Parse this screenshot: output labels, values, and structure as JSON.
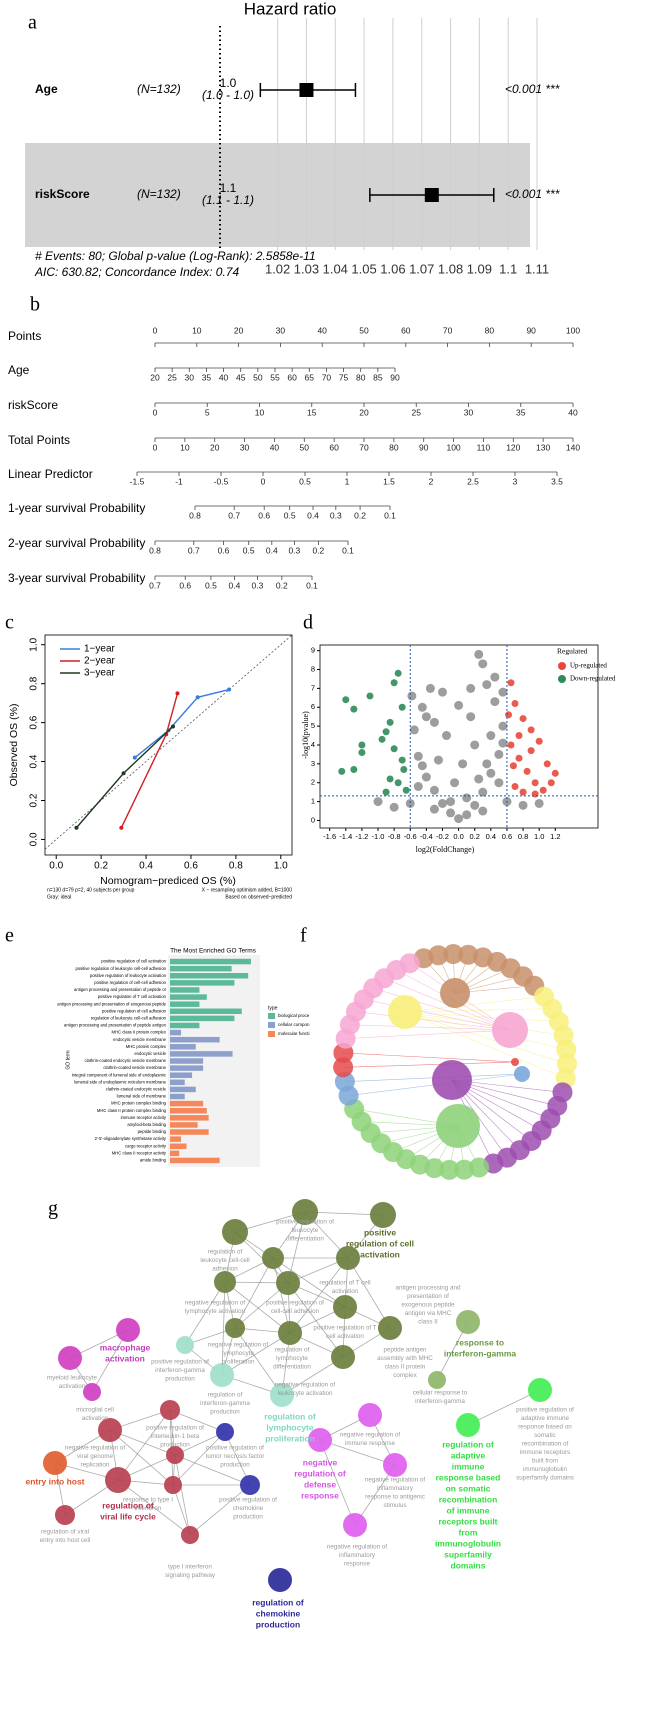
{
  "panel_labels": [
    "a",
    "b",
    "c",
    "d",
    "e",
    "f",
    "g"
  ],
  "chart_data": [
    {
      "type": "forest",
      "title": "Hazard ratio",
      "rows": [
        {
          "name": "Age",
          "n": "(N=132)",
          "estimate": 1.03,
          "lower": 1.014,
          "upper": 1.047,
          "hr_label": "1.0",
          "ci_label": "(1.0 - 1.0)",
          "p_label": "<0.001 ***"
        },
        {
          "name": "riskScore",
          "n": "(N=132)",
          "estimate": 1.0735,
          "lower": 1.052,
          "upper": 1.095,
          "hr_label": "1.1",
          "ci_label": "(1.1 - 1.1)",
          "p_label": "<0.001 ***"
        }
      ],
      "reference": 1,
      "xlim": [
        1.0,
        1.11
      ],
      "xticks": [
        1.02,
        1.03,
        1.04,
        1.05,
        1.06,
        1.07,
        1.08,
        1.09,
        1.1,
        1.11
      ],
      "grid": true,
      "footnotes": [
        "# Events: 80; Global p-value (Log-Rank): 2.5858e-11",
        "AIC: 630.82; Concordance Index: 0.74"
      ]
    },
    {
      "type": "nomogram",
      "rows": [
        {
          "name": "Points",
          "scale": "linear",
          "range": [
            0,
            100
          ],
          "ticks": [
            0,
            10,
            20,
            30,
            40,
            50,
            60,
            70,
            80,
            90,
            100
          ]
        },
        {
          "name": "Age",
          "scale": "linear",
          "range": [
            20,
            90
          ],
          "ticks": [
            20,
            25,
            30,
            35,
            40,
            45,
            50,
            55,
            60,
            65,
            70,
            75,
            80,
            85,
            90
          ]
        },
        {
          "name": "riskScore",
          "scale": "linear",
          "range": [
            0,
            40
          ],
          "ticks": [
            0,
            5,
            10,
            15,
            20,
            25,
            30,
            35,
            40
          ]
        },
        {
          "name": "Total Points",
          "scale": "linear",
          "range": [
            0,
            140
          ],
          "ticks": [
            0,
            10,
            20,
            30,
            40,
            50,
            60,
            70,
            80,
            90,
            100,
            110,
            120,
            130,
            140
          ]
        },
        {
          "name": "Linear Predictor",
          "scale": "linear",
          "range": [
            -1.5,
            3.5
          ],
          "ticks": [
            -1.5,
            -1,
            -0.5,
            0,
            0.5,
            1,
            1.5,
            2,
            2.5,
            3,
            3.5
          ]
        },
        {
          "name": "1-year survival Probability",
          "scale": "cloglog",
          "range": [
            0.8,
            0.1
          ],
          "ticks": [
            0.8,
            0.7,
            0.6,
            0.5,
            0.4,
            0.3,
            0.2,
            0.1
          ]
        },
        {
          "name": "2-year survival Probability",
          "scale": "cloglog",
          "range": [
            0.8,
            0.1
          ],
          "ticks": [
            0.8,
            0.7,
            0.6,
            0.5,
            0.4,
            0.3,
            0.2,
            0.1
          ]
        },
        {
          "name": "3-year survival Probability",
          "scale": "cloglog",
          "range": [
            0.7,
            0.1
          ],
          "ticks": [
            0.7,
            0.6,
            0.5,
            0.4,
            0.3,
            0.2,
            0.1
          ]
        }
      ]
    },
    {
      "type": "calibration",
      "xlabel": "Nomogram−prediced OS (%)",
      "ylabel": "Observed OS (%)",
      "xlim": [
        -0.05,
        1.05
      ],
      "ylim": [
        -0.08,
        1.05
      ],
      "xticks": [
        {
          "value": 0,
          "label": "0.0"
        },
        0.2,
        0.4,
        0.6,
        0.8,
        {
          "value": 1,
          "label": "1.0"
        }
      ],
      "yticks": [
        {
          "value": 0,
          "label": "0.0"
        },
        0.2,
        0.4,
        0.6,
        0.8,
        {
          "value": 1,
          "label": "1.0"
        }
      ],
      "ideal": true,
      "series": [
        {
          "name": "1−year",
          "color": "#3a7be0",
          "x": [
            0.35,
            0.5,
            0.63,
            0.77
          ],
          "values": [
            0.42,
            0.56,
            0.73,
            0.77
          ]
        },
        {
          "name": "2−year",
          "color": "#d02020",
          "x": [
            0.29,
            0.49,
            0.54
          ],
          "values": [
            0.06,
            0.54,
            0.75
          ]
        },
        {
          "name": "3−year",
          "color": "#1f3a1f",
          "x": [
            0.09,
            0.3,
            0.52
          ],
          "values": [
            0.06,
            0.34,
            0.58
          ]
        }
      ],
      "footnotes_left": [
        "n=130 d=79 p=2, 40 subjects per group",
        "Gray: ideal"
      ],
      "footnotes_right": [
        "X − resampling optimism added, B=1000",
        "Based on observed−predicted"
      ]
    },
    {
      "type": "volcano",
      "xlabel": "log2(FoldChange)",
      "ylabel": "-log10(pvalue)",
      "xlim": [
        -1.72,
        1.73
      ],
      "ylim": [
        -0.4,
        9.3
      ],
      "xticks": [
        -1.6,
        -1.4,
        -1.2,
        {
          "value": -1,
          "label": "-1.0"
        },
        -0.8,
        -0.6,
        -0.4,
        -0.2,
        {
          "value": 0,
          "label": "0.0"
        },
        0.2,
        0.4,
        0.6,
        0.8,
        {
          "value": 1,
          "label": "1.0"
        },
        1.2
      ],
      "yticks": [
        0,
        1,
        2,
        3,
        4,
        5,
        6,
        7,
        8,
        9
      ],
      "thresholds_x": [
        -0.6,
        0.6
      ],
      "threshold_y": 1.3,
      "legend_title": "Regulated",
      "background": {
        "color": "#8c8c8c",
        "x": [
          0,
          0.1,
          -0.1,
          0.2,
          -0.2,
          0.3,
          -0.3,
          0.4,
          -0.4,
          0.5,
          -0.5,
          0.55,
          -0.55,
          0.45,
          -0.45,
          0.35,
          0.25,
          0.3,
          -0.35,
          0.15,
          -0.15,
          0.05,
          -0.05,
          0.2,
          -0.25,
          0.4,
          -0.4,
          0.5,
          -0.5,
          0.1,
          -0.1,
          0.3,
          -0.3,
          0.6,
          -0.6,
          0.8,
          -0.8,
          1.0,
          -1.0,
          0.55,
          0.45,
          -0.58,
          0,
          0.15,
          -0.2,
          0.35,
          -0.45,
          0.25,
          -0.3,
          0.55
        ],
        "values": [
          0.1,
          0.3,
          0.4,
          0.8,
          0.9,
          1.5,
          1.6,
          2.5,
          2.3,
          3.5,
          3.4,
          5.0,
          4.8,
          6.3,
          6.0,
          7.2,
          8.8,
          8.3,
          7.0,
          5.5,
          4.5,
          3.0,
          2.0,
          4.0,
          3.2,
          4.5,
          5.5,
          2.0,
          1.8,
          1.2,
          1.0,
          0.5,
          0.6,
          1.0,
          0.9,
          0.8,
          0.7,
          0.9,
          1.0,
          6.8,
          7.6,
          6.6,
          6.1,
          7.0,
          6.8,
          3.0,
          2.9,
          2.2,
          5.2,
          4.1
        ]
      },
      "series": [
        {
          "name": "Up-regulated",
          "color": "#e8483c",
          "x": [
            0.65,
            0.7,
            0.8,
            0.9,
            1.0,
            1.1,
            1.2,
            0.95,
            0.75,
            0.85,
            0.65,
            0.7,
            1.05,
            0.9,
            0.62,
            0.75,
            1.15,
            0.8,
            0.68,
            0.95
          ],
          "values": [
            7.3,
            6.2,
            5.4,
            4.8,
            4.2,
            3.0,
            2.5,
            2.0,
            3.3,
            2.6,
            4.0,
            1.8,
            1.6,
            3.7,
            5.6,
            4.5,
            2.0,
            1.5,
            2.9,
            1.4
          ]
        },
        {
          "name": "Down-regulated",
          "color": "#2e8b57",
          "x": [
            -1.4,
            -1.3,
            -1.1,
            -1.2,
            -1.2,
            -1.3,
            -1.45,
            -0.95,
            -0.9,
            -0.85,
            -0.75,
            -0.8,
            -0.7,
            -0.75,
            -0.85,
            -0.7,
            -0.65,
            -0.9,
            -0.8,
            -0.68
          ],
          "values": [
            6.4,
            5.9,
            6.6,
            3.6,
            4.0,
            2.7,
            2.6,
            4.3,
            4.7,
            5.2,
            7.8,
            7.3,
            6.0,
            2.0,
            2.2,
            3.2,
            1.6,
            1.5,
            3.8,
            2.7
          ]
        }
      ]
    },
    {
      "type": "barh",
      "title": "The Most Enriched GO Terms",
      "ylabel": "GO term",
      "xlim": [
        0,
        100
      ],
      "categories": [
        "positive regulation of cell activation",
        "positive regulation of leukocyte cell-cell adhesion",
        "positive regulation of leukocyte activation",
        "positive regulation of cell-cell adhesion",
        "antigen processing and presentation of peptide or",
        "positive regulation of T cell activation",
        "antigen processing and presentation of exogenous peptide",
        "positive regulation of cell adhesion",
        "regulation of leukocyte cell-cell adhesion",
        "antigen processing and presentation of peptide antigen",
        "MHC class II protein complex",
        "endocytic vesicle membrane",
        "MHC protein complex",
        "endocytic vesicle",
        "clathrin-coated endocytic vesicle membrane",
        "clathrin-coated vesicle membrane",
        "integral component of lumenal side of endoplasmic",
        "lumenal side of endoplasmic reticulum membrane",
        "clathrin-coated endocytic vesicle",
        "lumenal side of membrane",
        "MHC protein complex binding",
        "MHC class II protein complex binding",
        "immune receptor activity",
        "amyloid-beta binding",
        "peptide binding",
        "2'-5'-oligoadenylate synthetase activity",
        "cargo receptor activity",
        "MHC class II receptor activity",
        "amide binding"
      ],
      "values": [
        88,
        67,
        85,
        70,
        32,
        40,
        32,
        78,
        70,
        32,
        12,
        54,
        28,
        68,
        36,
        36,
        24,
        16,
        28,
        16,
        36,
        40,
        42,
        30,
        42,
        12,
        18,
        10,
        54
      ],
      "groups": [
        0,
        0,
        0,
        0,
        0,
        0,
        0,
        0,
        0,
        0,
        1,
        1,
        1,
        1,
        1,
        1,
        1,
        1,
        1,
        1,
        2,
        2,
        2,
        2,
        2,
        2,
        2,
        2,
        2
      ],
      "legend_title": "type",
      "legend": [
        {
          "name": "biological proce",
          "color": "#5cba9a"
        },
        {
          "name": "cellular compon",
          "color": "#8da0cb"
        },
        {
          "name": "molecular functi",
          "color": "#f5875a"
        }
      ]
    }
  ],
  "network_g": {
    "nodes": [
      {
        "lines": [
          "positive regulation of",
          "leukocyte",
          "differentiation"
        ],
        "color": "#9a9a9a"
      },
      {
        "lines": [
          "positive",
          "regulation of cell",
          "activation"
        ],
        "color": "#5b6e2c",
        "bold": true
      },
      {
        "lines": [
          "regulation of",
          "leukocyte cell-cell",
          "adhesion"
        ],
        "color": "#9a9a9a"
      },
      {
        "lines": [
          "regulation of T cell",
          "activation"
        ],
        "color": "#9a9a9a"
      },
      {
        "lines": [
          "antigen processing and",
          "presentation of",
          "exogenous peptide",
          "antigen via MHC",
          "class II"
        ],
        "color": "#9a9a9a"
      },
      {
        "lines": [
          "negative regulation of",
          "lymphocyte activation"
        ],
        "color": "#9a9a9a"
      },
      {
        "lines": [
          "positive regulation of",
          "cell-cell adhesion"
        ],
        "color": "#9a9a9a"
      },
      {
        "lines": [
          "positive regulation of T",
          "cell activation"
        ],
        "color": "#9a9a9a"
      },
      {
        "lines": [
          "peptide antigen",
          "assembly with MHC",
          "class II protein",
          "complex"
        ],
        "color": "#9a9a9a"
      },
      {
        "lines": [
          "response to",
          "interferon-gamma"
        ],
        "color": "#6a9a44",
        "bold": true
      },
      {
        "lines": [
          "negative regulation of",
          "lymphocyte",
          "proliferation"
        ],
        "color": "#9a9a9a"
      },
      {
        "lines": [
          "positive regulation of",
          "interferon-gamma",
          "production"
        ],
        "color": "#9a9a9a"
      },
      {
        "lines": [
          "regulation of",
          "lymphocyte",
          "differentiation"
        ],
        "color": "#9a9a9a"
      },
      {
        "lines": [
          "negative regulation of",
          "leukocyte activation"
        ],
        "color": "#9a9a9a"
      },
      {
        "lines": [
          "macrophage",
          "activation"
        ],
        "color": "#c43cbc",
        "bold": true
      },
      {
        "lines": [
          "myeloid leukocyte",
          "activation"
        ],
        "color": "#9a9a9a"
      },
      {
        "lines": [
          "microglial cell",
          "activation"
        ],
        "color": "#9a9a9a"
      },
      {
        "lines": [
          "regulation of",
          "interferon-gamma",
          "production"
        ],
        "color": "#9a9a9a"
      },
      {
        "lines": [
          "cellular response to",
          "interferon-gamma"
        ],
        "color": "#9a9a9a"
      },
      {
        "lines": [
          "positive regulation of",
          "adaptive immune",
          "response based on",
          "somatic",
          "recombination of",
          "immune receptors",
          "built from",
          "immunoglobulin",
          "superfamily domains"
        ],
        "color": "#9a9a9a"
      },
      {
        "lines": [
          "regulation of",
          "lymphocyte",
          "proliferation"
        ],
        "color": "#7fd6c6",
        "bold": true
      },
      {
        "lines": [
          "positive regulation of",
          "interleukin-1 beta",
          "production"
        ],
        "color": "#9a9a9a"
      },
      {
        "lines": [
          "negative regulation of",
          "viral genome",
          "replication"
        ],
        "color": "#9a9a9a"
      },
      {
        "lines": [
          "positive regulation of",
          "tumor necrosis factor",
          "production"
        ],
        "color": "#9a9a9a"
      },
      {
        "lines": [
          "negative regulation of",
          "immune response"
        ],
        "color": "#9a9a9a"
      },
      {
        "lines": [
          "negative",
          "regulation of",
          "defense",
          "response"
        ],
        "color": "#d455e4",
        "bold": true
      },
      {
        "lines": [
          "regulation of",
          "adaptive",
          "immune",
          "response based",
          "on somatic",
          "recombination",
          "of immune",
          "receptors built",
          "from",
          "immunoglobulin",
          "superfamily",
          "domains"
        ],
        "color": "#33dd44",
        "bold": true
      },
      {
        "lines": [
          "entry into host"
        ],
        "color": "#e0552a",
        "bold": true
      },
      {
        "lines": [
          "negative regulation of",
          "inflammatory",
          "response to antigenic",
          "stimulus"
        ],
        "color": "#9a9a9a"
      },
      {
        "lines": [
          "response to type I",
          "interferon"
        ],
        "color": "#9a9a9a"
      },
      {
        "lines": [
          "positive regulation of",
          "chemokine",
          "production"
        ],
        "color": "#9a9a9a"
      },
      {
        "lines": [
          "regulation of",
          "viral life cycle"
        ],
        "color": "#b0304c",
        "bold": true
      },
      {
        "lines": [
          "regulation of viral",
          "entry into host cell"
        ],
        "color": "#9a9a9a"
      },
      {
        "lines": [
          "negative regulation of",
          "inflammatory",
          "response"
        ],
        "color": "#9a9a9a"
      },
      {
        "lines": [
          "type I interferon",
          "signaling pathway"
        ],
        "color": "#9a9a9a"
      },
      {
        "lines": [
          "regulation of",
          "chemokine",
          "production"
        ],
        "color": "#2a2a9a",
        "bold": true
      }
    ]
  }
}
